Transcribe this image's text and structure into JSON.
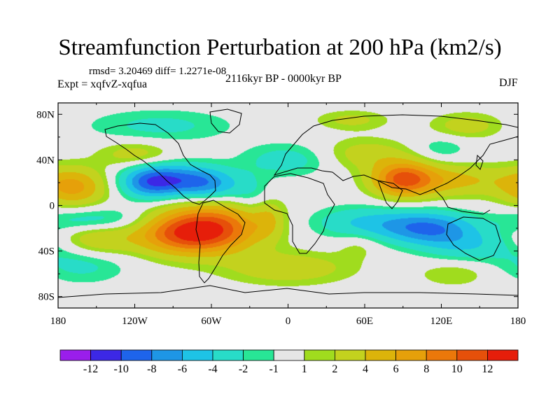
{
  "title": "Streamfunction Perturbation at 200 hPa (km2/s)",
  "stats": "rmsd= 3.20469 diff= 1.2271e-08",
  "experiment": "Expt = xqfvZ-xqfua",
  "period": "2116kyr BP - 0000kyr BP",
  "season": "DJF",
  "lat_ticks": [
    "80N",
    "40N",
    "0",
    "40S",
    "80S"
  ],
  "lon_ticks": [
    "180",
    "120W",
    "60W",
    "0",
    "60E",
    "120E",
    "180"
  ],
  "colorbar": {
    "colors": [
      "#9a1eeb",
      "#3c28e6",
      "#1e64eb",
      "#1e96e6",
      "#1ec3e6",
      "#28dcc8",
      "#28e696",
      "#e6e6e6",
      "#a0dc1e",
      "#c3d21e",
      "#dcb40a",
      "#e6a00a",
      "#eb780a",
      "#e6500a",
      "#e61e0a"
    ],
    "labels": [
      "-12",
      "-10",
      "-8",
      "-6",
      "-4",
      "-2",
      "-1",
      "1",
      "2",
      "4",
      "6",
      "8",
      "10",
      "12"
    ]
  },
  "chart_data": {
    "type": "heatmap",
    "variable": "Streamfunction Perturbation at 200 hPa",
    "units": "km2/s",
    "season": "DJF",
    "x_range": [
      -180,
      180
    ],
    "y_range": [
      -90,
      90
    ],
    "levels": [
      -12,
      -10,
      -8,
      -6,
      -4,
      -2,
      -1,
      1,
      2,
      4,
      6,
      8,
      10,
      12
    ],
    "blobs": [
      {
        "lon": -75,
        "lat": -25,
        "value": 11.5,
        "spread_lon": 30,
        "spread_lat": 13
      },
      {
        "lon": -55,
        "lat": -12,
        "value": 5,
        "spread_lon": 30,
        "spread_lat": 15
      },
      {
        "lon": -150,
        "lat": -30,
        "value": 4,
        "spread_lon": 20,
        "spread_lat": 12
      },
      {
        "lon": -168,
        "lat": 16,
        "value": 6.5,
        "spread_lon": 18,
        "spread_lat": 12
      },
      {
        "lon": -90,
        "lat": 22,
        "value": -8,
        "spread_lon": 22,
        "spread_lat": 10
      },
      {
        "lon": -60,
        "lat": 18,
        "value": -5,
        "spread_lon": 16,
        "spread_lat": 10
      },
      {
        "lon": -110,
        "lat": 20,
        "value": -5,
        "spread_lon": 15,
        "spread_lat": 10
      },
      {
        "lon": -150,
        "lat": -13,
        "value": -4,
        "spread_lon": 30,
        "spread_lat": 8
      },
      {
        "lon": -160,
        "lat": -50,
        "value": -3,
        "spread_lon": 25,
        "spread_lat": 12
      },
      {
        "lon": -100,
        "lat": 70,
        "value": -2.5,
        "spread_lon": 40,
        "spread_lat": 10
      },
      {
        "lon": 90,
        "lat": 23,
        "value": 9.5,
        "spread_lon": 17,
        "spread_lat": 11
      },
      {
        "lon": 130,
        "lat": 22,
        "value": 4.5,
        "spread_lon": 30,
        "spread_lat": 10
      },
      {
        "lon": 60,
        "lat": 45,
        "value": 3,
        "spread_lon": 25,
        "spread_lat": 10
      },
      {
        "lon": 140,
        "lat": 70,
        "value": 3,
        "spread_lon": 20,
        "spread_lat": 8
      },
      {
        "lon": 50,
        "lat": 75,
        "value": 2.5,
        "spread_lon": 20,
        "spread_lat": 6
      },
      {
        "lon": -120,
        "lat": 45,
        "value": 3,
        "spread_lon": 20,
        "spread_lat": 8
      },
      {
        "lon": 110,
        "lat": -20,
        "value": -7.5,
        "spread_lon": 25,
        "spread_lat": 10
      },
      {
        "lon": 60,
        "lat": -15,
        "value": -4,
        "spread_lon": 30,
        "spread_lat": 10
      },
      {
        "lon": 140,
        "lat": -35,
        "value": -3.5,
        "spread_lon": 25,
        "spread_lat": 10
      },
      {
        "lon": 0,
        "lat": 40,
        "value": -3,
        "spread_lon": 25,
        "spread_lat": 10
      },
      {
        "lon": 0,
        "lat": -55,
        "value": 3.5,
        "spread_lon": 35,
        "spread_lat": 10
      },
      {
        "lon": 55,
        "lat": -35,
        "value": 1.5,
        "spread_lon": 12,
        "spread_lat": 8
      },
      {
        "lon": -15,
        "lat": -12,
        "value": 2.5,
        "spread_lon": 8,
        "spread_lat": 12
      },
      {
        "lon": 130,
        "lat": -60,
        "value": 2,
        "spread_lon": 20,
        "spread_lat": 8
      },
      {
        "lon": 120,
        "lat": 50,
        "value": -2,
        "spread_lon": 15,
        "spread_lat": 8
      },
      {
        "lon": -30,
        "lat": 10,
        "value": -2.5,
        "spread_lon": 12,
        "spread_lat": 12
      }
    ]
  }
}
